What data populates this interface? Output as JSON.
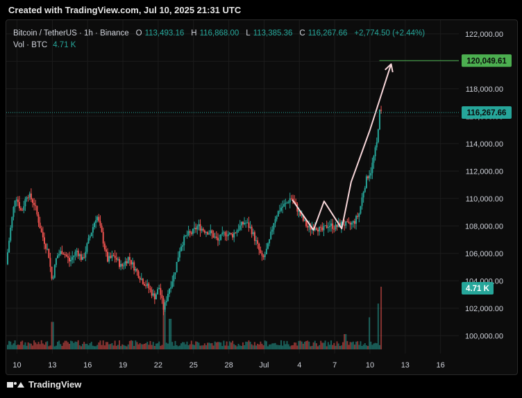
{
  "header": {
    "title": "Created with TradingView.com, Jul 10, 2025 21:31 UTC"
  },
  "legend": {
    "symbol": "Bitcoin / TetherUS · 1h · Binance",
    "o_label": "O",
    "o_value": "113,493.16",
    "h_label": "H",
    "h_value": "116,868.00",
    "l_label": "L",
    "l_value": "113,385.36",
    "c_label": "C",
    "c_value": "116,267.66",
    "change": "+2,774.50 (+2.44%)",
    "vol_label": "Vol · BTC",
    "vol_value": "4.71 K"
  },
  "footer": {
    "brand": "TradingView"
  },
  "colors": {
    "up": "#26a69a",
    "down": "#ef5350",
    "arrow": "#f8d7da",
    "target_line": "#4caf50",
    "target_badge": "#4caf50",
    "last_price_badge": "#26a69a",
    "vol_badge": "#26a69a",
    "grid": "#1c1c1c",
    "axis_text": "#d1d4dc"
  },
  "chart_data": {
    "type": "candlestick",
    "title": "Bitcoin / TetherUS · 1h · Binance",
    "y_ticks": [
      "122,000.00",
      "120,000.00",
      "118,000.00",
      "116,000.00",
      "114,000.00",
      "112,000.00",
      "110,000.00",
      "108,000.00",
      "106,000.00",
      "104,000.00",
      "102,000.00",
      "100,000.00"
    ],
    "y_tick_values": [
      122000,
      120000,
      118000,
      116000,
      114000,
      112000,
      110000,
      108000,
      106000,
      104000,
      102000,
      100000
    ],
    "x_ticks": [
      "10",
      "13",
      "16",
      "19",
      "22",
      "25",
      "28",
      "Jul",
      "4",
      "7",
      "10",
      "13",
      "16"
    ],
    "x_tick_days": [
      10,
      13,
      16,
      19,
      22,
      25,
      28,
      31,
      34,
      37,
      40,
      43,
      46
    ],
    "ylim": [
      99000,
      123000
    ],
    "xlim_days": [
      9.2,
      47.2
    ],
    "price_path": [
      [
        9.2,
        105200
      ],
      [
        9.6,
        108000
      ],
      [
        10.0,
        110300
      ],
      [
        10.5,
        109000
      ],
      [
        11.0,
        110400
      ],
      [
        11.6,
        109600
      ],
      [
        12.2,
        107500
      ],
      [
        12.8,
        106000
      ],
      [
        13.1,
        104000
      ],
      [
        13.5,
        105800
      ],
      [
        14.0,
        106200
      ],
      [
        14.6,
        105400
      ],
      [
        15.2,
        106200
      ],
      [
        15.7,
        105500
      ],
      [
        16.3,
        107200
      ],
      [
        16.9,
        108800
      ],
      [
        17.3,
        107500
      ],
      [
        17.8,
        105500
      ],
      [
        18.4,
        105800
      ],
      [
        19.0,
        105000
      ],
      [
        19.6,
        105700
      ],
      [
        20.2,
        104800
      ],
      [
        20.8,
        104000
      ],
      [
        21.3,
        103500
      ],
      [
        21.8,
        102800
      ],
      [
        22.2,
        103500
      ],
      [
        22.6,
        101900
      ],
      [
        23.0,
        103300
      ],
      [
        23.5,
        104500
      ],
      [
        24.0,
        106500
      ],
      [
        24.5,
        107300
      ],
      [
        25.0,
        107500
      ],
      [
        25.5,
        108000
      ],
      [
        26.0,
        107700
      ],
      [
        26.6,
        107500
      ],
      [
        27.2,
        106900
      ],
      [
        27.8,
        107500
      ],
      [
        28.4,
        107300
      ],
      [
        29.0,
        107900
      ],
      [
        29.5,
        108300
      ],
      [
        30.0,
        107800
      ],
      [
        30.5,
        106700
      ],
      [
        31.0,
        105500
      ],
      [
        31.5,
        106600
      ],
      [
        32.0,
        108500
      ],
      [
        32.5,
        109300
      ],
      [
        33.0,
        109600
      ],
      [
        33.4,
        110100
      ],
      [
        33.8,
        109500
      ],
      [
        34.3,
        108600
      ],
      [
        34.9,
        107800
      ],
      [
        35.5,
        108000
      ],
      [
        36.0,
        107600
      ],
      [
        36.6,
        108100
      ],
      [
        37.2,
        107900
      ],
      [
        37.8,
        108200
      ],
      [
        38.3,
        108000
      ],
      [
        38.8,
        108300
      ],
      [
        39.2,
        108900
      ],
      [
        39.6,
        110700
      ],
      [
        39.9,
        111600
      ],
      [
        40.2,
        112000
      ],
      [
        40.5,
        113200
      ],
      [
        40.7,
        114000
      ],
      [
        40.85,
        115500
      ],
      [
        40.95,
        116267
      ]
    ],
    "volume_spikes": [
      [
        13.0,
        0.36
      ],
      [
        22.5,
        0.55
      ],
      [
        23.0,
        0.4
      ],
      [
        37.9,
        0.2
      ],
      [
        40.0,
        0.42
      ],
      [
        40.7,
        0.6
      ],
      [
        40.95,
        0.82
      ]
    ],
    "projection_path": [
      [
        33.4,
        109900
      ],
      [
        35.2,
        107700
      ],
      [
        36.1,
        109800
      ],
      [
        37.6,
        107800
      ],
      [
        38.4,
        111200
      ],
      [
        40.0,
        115000
      ],
      [
        41.8,
        119800
      ]
    ],
    "target_price": 120049.61,
    "target_label": "120,049.61",
    "last_price": 116267.66,
    "last_price_label": "116,267.66",
    "volume_label": "4.71 K",
    "grid": true
  }
}
